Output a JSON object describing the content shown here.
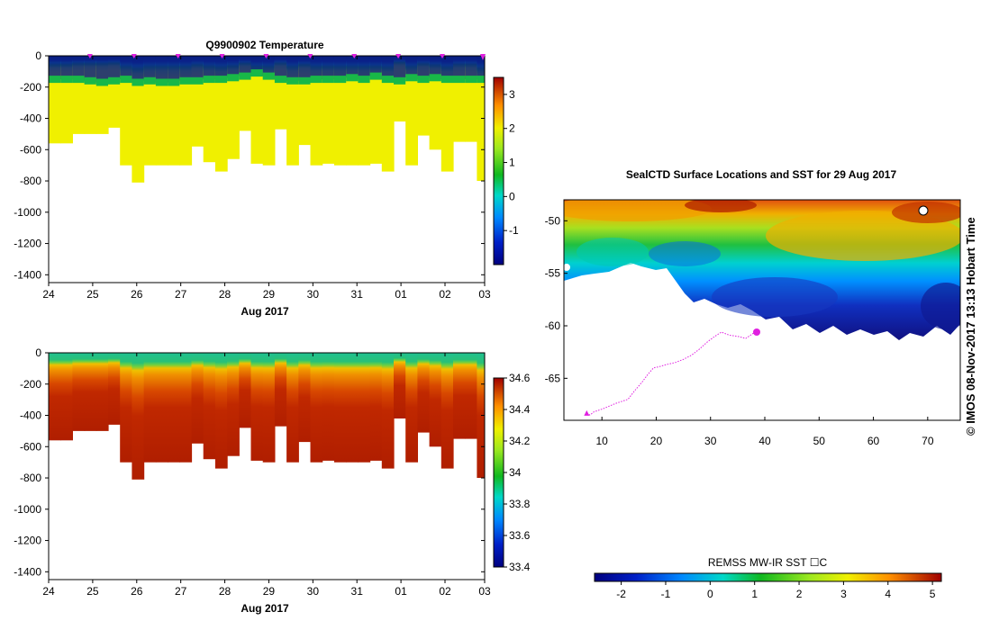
{
  "chart_data": [
    {
      "type": "heatmap",
      "title": "Q9900902  Temperature",
      "xlabel": "Aug 2017",
      "ylabel": "",
      "x_tick_labels": [
        "24",
        "25",
        "26",
        "27",
        "28",
        "29",
        "30",
        "31",
        "01",
        "02",
        "03"
      ],
      "y_tick_labels": [
        "0",
        "-200",
        "-400",
        "-600",
        "-800",
        "-1000",
        "-1200",
        "-1400"
      ],
      "ylim": [
        -1450,
        0
      ],
      "xlim": [
        0,
        9.9
      ],
      "colorbar": {
        "min": -2,
        "max": 3.5,
        "ticks": [
          "3",
          "2",
          "1",
          "0",
          "-1"
        ],
        "tick_values": [
          3,
          2,
          1,
          0,
          -1
        ]
      },
      "profile_max_depth": [
        560,
        560,
        500,
        500,
        500,
        460,
        700,
        810,
        700,
        700,
        700,
        700,
        580,
        680,
        740,
        660,
        480,
        690,
        700,
        470,
        700,
        570,
        700,
        690,
        700,
        700,
        700,
        690,
        740,
        420,
        700,
        510,
        600,
        740,
        550,
        550,
        800
      ],
      "surface_value": -1.7,
      "thermocline_depth": [
        150,
        150,
        150,
        160,
        170,
        160,
        150,
        170,
        160,
        170,
        170,
        160,
        160,
        150,
        150,
        140,
        130,
        110,
        130,
        150,
        160,
        160,
        150,
        150,
        150,
        140,
        150,
        130,
        150,
        160,
        140,
        150,
        140,
        150,
        150,
        150,
        150
      ],
      "deep_value": 2.1
    },
    {
      "type": "heatmap",
      "title": "",
      "xlabel": "Aug 2017",
      "ylabel": "",
      "x_tick_labels": [
        "24",
        "25",
        "26",
        "27",
        "28",
        "29",
        "30",
        "31",
        "01",
        "02",
        "03"
      ],
      "y_tick_labels": [
        "0",
        "-200",
        "-400",
        "-600",
        "-800",
        "-1000",
        "-1200",
        "-1400"
      ],
      "ylim": [
        -1450,
        0
      ],
      "xlim": [
        0,
        9.9
      ],
      "colorbar": {
        "min": 33.4,
        "max": 34.6,
        "ticks": [
          "34.6",
          "34.4",
          "34.2",
          "34",
          "33.8",
          "33.6",
          "33.4"
        ],
        "tick_values": [
          34.6,
          34.4,
          34.2,
          34,
          33.8,
          33.6,
          33.4
        ]
      },
      "profile_max_depth": [
        560,
        560,
        500,
        500,
        500,
        460,
        700,
        810,
        700,
        700,
        700,
        700,
        580,
        680,
        740,
        660,
        480,
        690,
        700,
        470,
        700,
        570,
        700,
        690,
        700,
        700,
        700,
        690,
        740,
        420,
        700,
        510,
        600,
        740,
        550,
        550,
        800
      ],
      "surface_value": 33.9,
      "deep_value": 34.58
    },
    {
      "type": "heatmap",
      "title": "SealCTD Surface Locations and SST for 29 Aug 2017",
      "xlabel": "",
      "ylabel": "",
      "x_tick_labels": [
        "10",
        "20",
        "30",
        "40",
        "50",
        "60",
        "70"
      ],
      "x_tick_values": [
        10,
        20,
        30,
        40,
        50,
        60,
        70
      ],
      "y_tick_labels": [
        "-50",
        "-55",
        "-60",
        "-65"
      ],
      "y_tick_values": [
        -50,
        -55,
        -60,
        -65
      ],
      "xlim": [
        3,
        76
      ],
      "ylim": [
        -69,
        -48
      ],
      "colorbar": {
        "label": "REMSS MW-IR SST ☐C",
        "min": -2.6,
        "max": 5.2,
        "ticks": [
          "-2",
          "-1",
          "0",
          "1",
          "2",
          "3",
          "4",
          "5"
        ],
        "tick_values": [
          -2,
          -1,
          0,
          1,
          2,
          3,
          4,
          5
        ]
      },
      "track_lon": [
        7.2,
        7.8,
        8.5,
        10.2,
        12.5,
        14.8,
        16.0,
        17.5,
        18.5,
        19.5,
        20.5,
        21.8,
        23.5,
        25.0,
        26.5,
        28.0,
        29.5,
        30.8,
        32.0,
        33.5,
        35.0,
        36.5,
        38.2
      ],
      "track_lat": [
        -68.3,
        -68.5,
        -68.2,
        -67.9,
        -67.4,
        -67.0,
        -66.2,
        -65.3,
        -64.6,
        -64.0,
        -63.9,
        -63.7,
        -63.5,
        -63.2,
        -62.8,
        -62.2,
        -61.5,
        -61.0,
        -60.6,
        -60.9,
        -61.0,
        -61.2,
        -60.6
      ],
      "last_position": {
        "lon": 38.5,
        "lat": -60.6
      }
    }
  ],
  "stamp": "©  IMOS 08-Nov-2017 13:13 Hobart Time"
}
